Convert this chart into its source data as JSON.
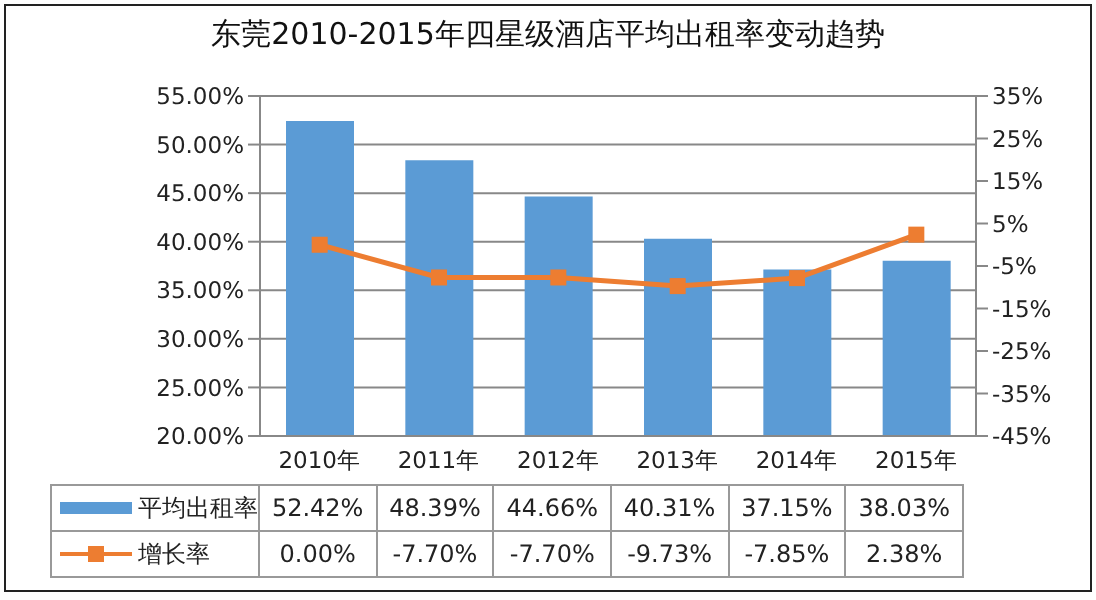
{
  "chart_data": {
    "type": "bar",
    "title": "东莞2010-2015年四星级酒店平均出租率变动趋势",
    "categories": [
      "2010年",
      "2011年",
      "2012年",
      "2013年",
      "2014年",
      "2015年"
    ],
    "series": [
      {
        "name": "平均出租率",
        "color": "#5b9bd5",
        "values": [
          52.42,
          48.39,
          44.66,
          40.31,
          37.15,
          38.03
        ],
        "value_labels": [
          "52.42%",
          "48.39%",
          "44.66%",
          "40.31%",
          "37.15%",
          "38.03%"
        ]
      },
      {
        "name": "增长率",
        "type": "line",
        "axis": "y2",
        "color": "#ed7d31",
        "values": [
          0.0,
          -7.7,
          -7.7,
          -9.73,
          -7.85,
          2.38
        ],
        "value_labels": [
          "0.00%",
          "-7.70%",
          "-7.70%",
          "-9.73%",
          "-7.85%",
          "2.38%"
        ]
      }
    ],
    "ylim": [
      20,
      55
    ],
    "yticks": [
      {
        "value": 20,
        "label": "20.00%"
      },
      {
        "value": 25,
        "label": "25.00%"
      },
      {
        "value": 30,
        "label": "30.00%"
      },
      {
        "value": 35,
        "label": "35.00%"
      },
      {
        "value": 40,
        "label": "40.00%"
      },
      {
        "value": 45,
        "label": "45.00%"
      },
      {
        "value": 50,
        "label": "50.00%"
      },
      {
        "value": 55,
        "label": "55.00%"
      }
    ],
    "y2lim": [
      -45,
      35
    ],
    "y2ticks": [
      {
        "value": -45,
        "label": "-45%"
      },
      {
        "value": -35,
        "label": "-35%"
      },
      {
        "value": -25,
        "label": "-25%"
      },
      {
        "value": -15,
        "label": "-15%"
      },
      {
        "value": -5,
        "label": "-5%"
      },
      {
        "value": 5,
        "label": "5%"
      },
      {
        "value": 15,
        "label": "15%"
      },
      {
        "value": 25,
        "label": "25%"
      },
      {
        "value": 35,
        "label": "35%"
      }
    ],
    "grid": "y",
    "legend": "bottom",
    "marker": "square",
    "line_style": "solid"
  }
}
